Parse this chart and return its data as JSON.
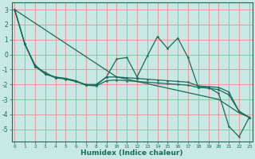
{
  "xlabel": "Humidex (Indice chaleur)",
  "background_color": "#c8e8e4",
  "grid_color": "#e89090",
  "line_color": "#1a6b5a",
  "x": [
    0,
    1,
    2,
    3,
    4,
    5,
    6,
    7,
    8,
    9,
    10,
    11,
    12,
    13,
    14,
    15,
    16,
    17,
    18,
    19,
    20,
    21,
    22,
    23
  ],
  "line_jagged": [
    3.0,
    0.7,
    -0.7,
    -1.3,
    -1.5,
    -1.6,
    -1.8,
    -2.0,
    -2.0,
    -1.5,
    -0.3,
    -0.2,
    -1.5,
    -0.1,
    1.2,
    0.4,
    1.1,
    -0.2,
    -2.2,
    -2.2,
    -2.6,
    -4.8,
    -5.5,
    -4.2
  ],
  "line_straight": [
    3.0,
    2.55,
    2.1,
    1.65,
    1.2,
    0.75,
    0.3,
    -0.15,
    -0.6,
    -1.05,
    -1.5,
    -1.65,
    -1.8,
    -1.95,
    -2.1,
    -2.25,
    -2.4,
    -2.55,
    -2.7,
    -2.85,
    -3.0,
    -3.45,
    -3.9,
    -4.2
  ],
  "line_smooth1": [
    3.0,
    0.7,
    -0.8,
    -1.2,
    -1.55,
    -1.6,
    -1.75,
    -2.05,
    -2.05,
    -1.5,
    -1.5,
    -1.55,
    -1.6,
    -1.65,
    -1.7,
    -1.75,
    -1.8,
    -1.85,
    -2.1,
    -2.15,
    -2.2,
    -2.5,
    -3.8,
    -4.2
  ],
  "line_smooth2": [
    3.0,
    0.7,
    -0.8,
    -1.3,
    -1.55,
    -1.65,
    -1.8,
    -2.05,
    -2.1,
    -1.75,
    -1.7,
    -1.75,
    -1.8,
    -1.85,
    -1.9,
    -1.95,
    -2.0,
    -2.05,
    -2.2,
    -2.25,
    -2.35,
    -2.7,
    -3.8,
    -4.2
  ],
  "ylim": [
    -5.8,
    3.5
  ],
  "xlim": [
    -0.3,
    23.3
  ],
  "yticks": [
    -5,
    -4,
    -3,
    -2,
    -1,
    0,
    1,
    2,
    3
  ],
  "xticks": [
    0,
    1,
    2,
    3,
    4,
    5,
    6,
    7,
    8,
    9,
    10,
    11,
    12,
    13,
    14,
    15,
    16,
    17,
    18,
    19,
    20,
    21,
    22,
    23
  ]
}
